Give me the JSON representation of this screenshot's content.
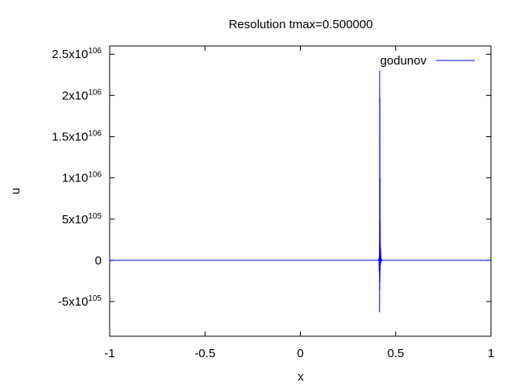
{
  "chart_data": {
    "type": "line",
    "title": "Resolution tmax=0.500000",
    "xlabel": "x",
    "ylabel": "u",
    "xlim": [
      -1,
      1
    ],
    "ylim": [
      -9.2e+105,
      2.6e+106
    ],
    "x_ticks": [
      {
        "value": -1,
        "label": "-1"
      },
      {
        "value": -0.5,
        "label": "-0.5"
      },
      {
        "value": 0,
        "label": "0"
      },
      {
        "value": 0.5,
        "label": "0.5"
      },
      {
        "value": 1,
        "label": "1"
      }
    ],
    "y_ticks": [
      {
        "value": -5e+105,
        "mantissa": "-5x10",
        "exponent": "105"
      },
      {
        "value": 0,
        "mantissa": "0",
        "exponent": ""
      },
      {
        "value": 5e+105,
        "mantissa": "5x10",
        "exponent": "105"
      },
      {
        "value": 1e+106,
        "mantissa": "1x10",
        "exponent": "106"
      },
      {
        "value": 1.5e+106,
        "mantissa": "1.5x10",
        "exponent": "106"
      },
      {
        "value": 2e+106,
        "mantissa": "2x10",
        "exponent": "106"
      },
      {
        "value": 2.5e+106,
        "mantissa": "2.5x10",
        "exponent": "106"
      }
    ],
    "grid": false,
    "legend_position": "top-right",
    "series": [
      {
        "name": "godunov",
        "color": "#0000ff",
        "x": [
          -1,
          0.41,
          0.412,
          0.414,
          0.415,
          0.4155,
          0.416,
          0.4165,
          0.417,
          0.4175,
          0.418,
          0.4185,
          0.419,
          0.42,
          0.421,
          0.422,
          0.4225,
          0.423,
          0.424,
          0.426,
          0.428,
          0.43,
          1
        ],
        "y": [
          0,
          0,
          3e+104,
          -1.5e+105,
          2e+105,
          -6.3e+105,
          2.3e+106,
          -3.5e+105,
          1.98e+106,
          -2.5e+105,
          1e+106,
          -1.2e+105,
          4.8e+105,
          -6e+104,
          1.5e+105,
          -3e+104,
          7e+104,
          -2e+104,
          3e+104,
          -1e+104,
          5e+103,
          0,
          0
        ]
      }
    ]
  }
}
